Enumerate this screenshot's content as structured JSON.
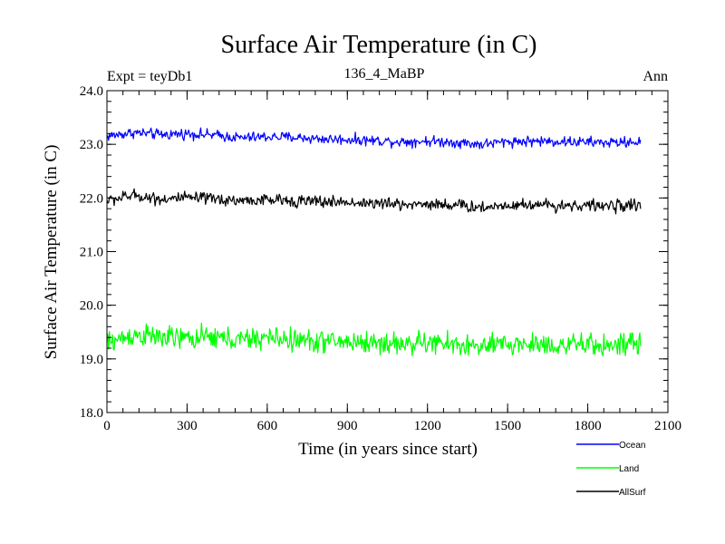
{
  "chart_data": {
    "type": "line",
    "title": "Surface Air Temperature (in C)",
    "left_note": "Expt = teyDb1",
    "center_note": "136_4_MaBP",
    "right_note": "Ann",
    "xlabel": "Time (in years since start)",
    "ylabel": "Surface Air Temperature (in C)",
    "xlim": [
      0,
      2100
    ],
    "ylim": [
      18.0,
      24.0
    ],
    "x_ticks": [
      0,
      300,
      600,
      900,
      1200,
      1500,
      1800,
      2100
    ],
    "x_tick_labels": [
      "0",
      "300",
      "600",
      "900",
      "1200",
      "1500",
      "1800",
      "2100"
    ],
    "y_ticks": [
      18.0,
      19.0,
      20.0,
      21.0,
      22.0,
      23.0,
      24.0
    ],
    "y_tick_labels": [
      "18.0",
      "19.0",
      "20.0",
      "21.0",
      "22.0",
      "23.0",
      "24.0"
    ],
    "x_minor_step": 60,
    "y_minor_step": 0.2,
    "grid": false,
    "legend_position": "bottom-right-outside",
    "series": [
      {
        "name": "Ocean",
        "color": "#0000ff",
        "x": [
          0,
          100,
          200,
          300,
          400,
          500,
          600,
          700,
          800,
          900,
          1000,
          1100,
          1200,
          1300,
          1400,
          1500,
          1600,
          1700,
          1800,
          1900,
          2000
        ],
        "values": [
          23.15,
          23.22,
          23.18,
          23.2,
          23.17,
          23.12,
          23.14,
          23.13,
          23.1,
          23.09,
          23.07,
          23.05,
          23.06,
          23.04,
          23.0,
          23.05,
          23.06,
          23.05,
          23.04,
          23.03,
          23.05
        ],
        "noise": 0.07
      },
      {
        "name": "Land",
        "color": "#00ff00",
        "x": [
          0,
          100,
          200,
          300,
          400,
          500,
          600,
          700,
          800,
          900,
          1000,
          1100,
          1200,
          1300,
          1400,
          1500,
          1600,
          1700,
          1800,
          1900,
          2000
        ],
        "values": [
          19.3,
          19.45,
          19.4,
          19.38,
          19.4,
          19.35,
          19.4,
          19.35,
          19.33,
          19.32,
          19.3,
          19.28,
          19.3,
          19.27,
          19.22,
          19.27,
          19.28,
          19.25,
          19.26,
          19.25,
          19.28
        ],
        "noise": 0.15
      },
      {
        "name": "AllSurf",
        "color": "#000000",
        "x": [
          0,
          100,
          200,
          300,
          400,
          500,
          600,
          700,
          800,
          900,
          1000,
          1100,
          1200,
          1300,
          1400,
          1500,
          1600,
          1700,
          1800,
          1900,
          2000
        ],
        "values": [
          21.95,
          22.05,
          21.98,
          22.0,
          21.98,
          21.95,
          21.96,
          21.95,
          21.93,
          21.92,
          21.9,
          21.88,
          21.89,
          21.87,
          21.82,
          21.87,
          21.88,
          21.86,
          21.86,
          21.85,
          21.88
        ],
        "noise": 0.08
      }
    ]
  }
}
